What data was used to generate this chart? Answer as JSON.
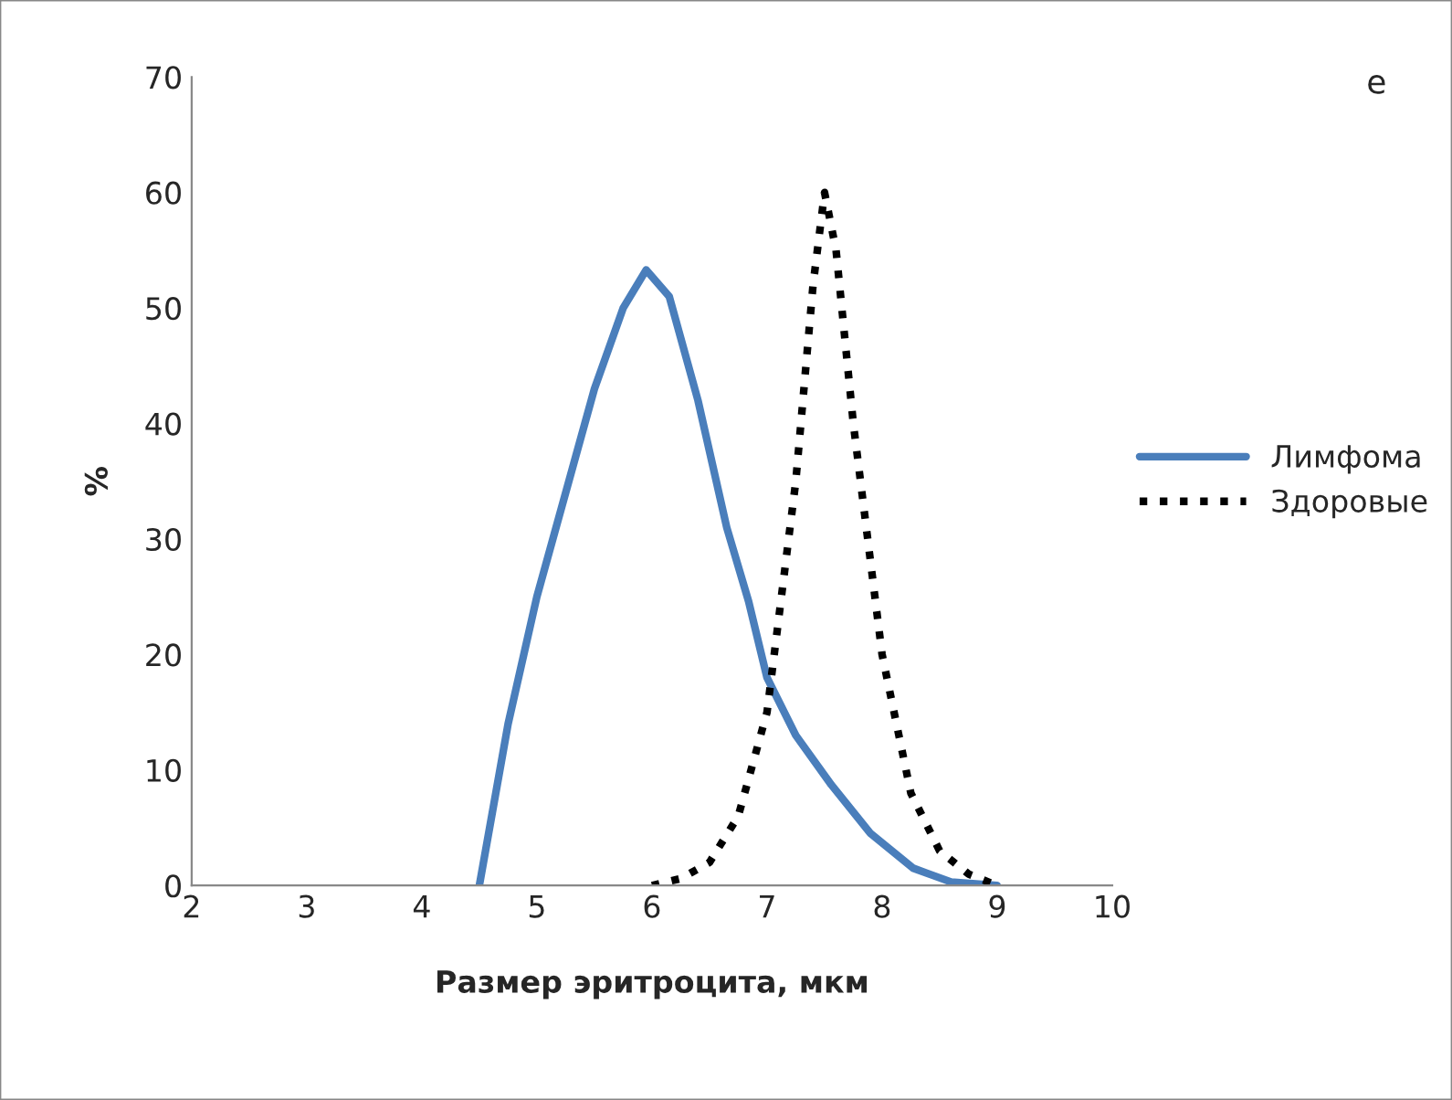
{
  "chart_data": {
    "type": "line",
    "xlabel": "Размер эритроцита, мкм",
    "ylabel": "%",
    "annotations": [
      "е"
    ],
    "xlim": [
      2,
      10
    ],
    "xticks": [
      2,
      3,
      4,
      5,
      6,
      7,
      8,
      9,
      10
    ],
    "ylim": [
      0,
      70
    ],
    "yticks": [
      0,
      10,
      20,
      30,
      40,
      50,
      60,
      70
    ],
    "grid": false,
    "legend": "right",
    "marker": "none",
    "series": [
      {
        "name": "Лимфома",
        "color": "#4a7ebb",
        "line_style": "solid",
        "x": [
          4.5,
          4.75,
          5,
          5.25,
          5.5,
          5.75,
          5.95,
          6.15,
          6.4,
          6.65,
          6.84,
          7.0,
          7.25,
          7.56,
          7.9,
          8.27,
          8.6,
          9.0
        ],
        "values": [
          0,
          14,
          25,
          34,
          43,
          50,
          53.3,
          51,
          42,
          31,
          24.6,
          18,
          13,
          8.7,
          4.5,
          1.5,
          0.3,
          0
        ]
      },
      {
        "name": "Здоровые",
        "color": "#000000",
        "line_style": "dotted",
        "x": [
          6,
          6.25,
          6.5,
          6.75,
          7,
          7.25,
          7.4,
          7.5,
          7.6,
          7.75,
          8,
          8.25,
          8.5,
          8.75,
          9
        ],
        "values": [
          0,
          0.6,
          2,
          6,
          15,
          35,
          52,
          60,
          55,
          40,
          20,
          8,
          3,
          1,
          0
        ]
      }
    ]
  }
}
